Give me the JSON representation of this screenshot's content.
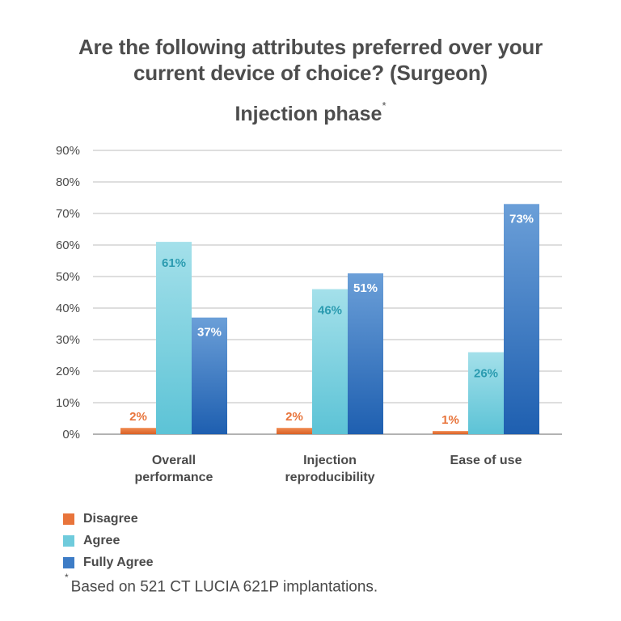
{
  "title_line1": "Are the following attributes preferred over your",
  "title_line2": "current device of choice? (Surgeon)",
  "subtitle": "Injection phase",
  "subtitle_mark": "*",
  "footnote_mark": "*",
  "footnote": "Based on 521 CT LUCIA 621P implantations.",
  "chart_data": {
    "type": "bar",
    "categories": [
      [
        "Overall",
        "performance"
      ],
      [
        "Injection",
        "reproducibility"
      ],
      [
        "Ease of use"
      ]
    ],
    "series": [
      {
        "name": "Disagree",
        "values": [
          2,
          2,
          1
        ],
        "labels": [
          "2%",
          "2%",
          "1%"
        ],
        "color": "#e8743b",
        "label_color": "#e8743b"
      },
      {
        "name": "Agree",
        "values": [
          61,
          46,
          26
        ],
        "labels": [
          "61%",
          "46%",
          "26%"
        ],
        "color": "#7fd0df",
        "label_color": "#2b9bb0"
      },
      {
        "name": "Fully Agree",
        "values": [
          37,
          51,
          73
        ],
        "labels": [
          "37%",
          "51%",
          "73%"
        ],
        "color": "#3d7cc6",
        "label_color": "#ffffff"
      }
    ],
    "ylim": [
      0,
      90
    ],
    "yticks": [
      "0%",
      "10%",
      "20%",
      "30%",
      "40%",
      "50%",
      "60%",
      "70%",
      "80%",
      "90%"
    ],
    "grid": true,
    "legend_position": "bottom-left"
  }
}
